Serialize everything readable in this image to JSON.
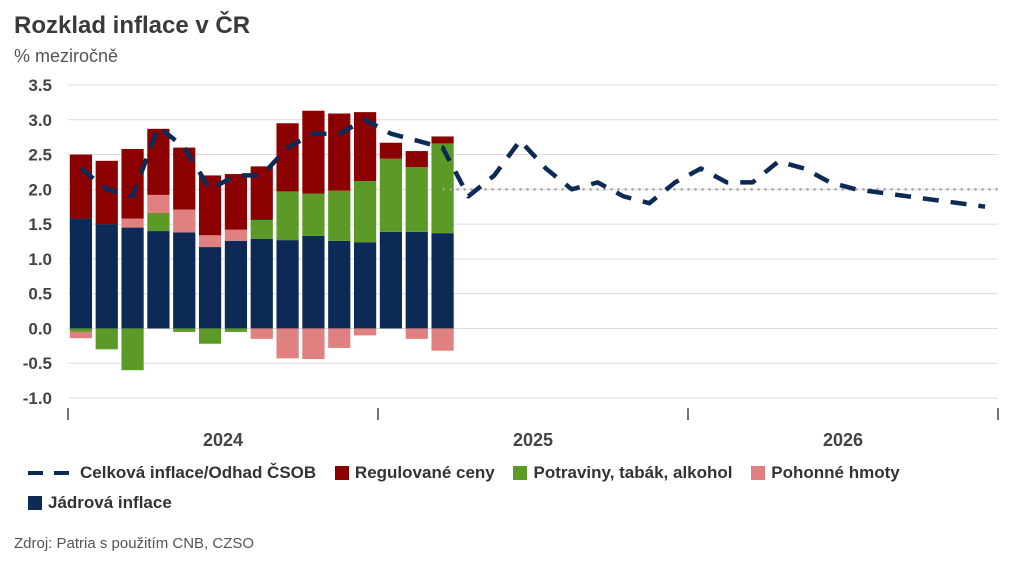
{
  "chart_data": {
    "type": "bar",
    "title": "Rozklad inflace v ČR",
    "subtitle": "% meziročně",
    "source": "Zdroj: Patria s použitím CNB, CZSO",
    "ylim": [
      -1.0,
      3.5
    ],
    "yticks": [
      "3.5",
      "3.0",
      "2.5",
      "2.0",
      "1.5",
      "1.0",
      "0.5",
      "0.0",
      "-0.5",
      "-1.0"
    ],
    "ytick_values": [
      3.5,
      3.0,
      2.5,
      2.0,
      1.5,
      1.0,
      0.5,
      0.0,
      -0.5,
      -1.0
    ],
    "years": [
      "2024",
      "2025",
      "2026"
    ],
    "n_months": 36,
    "target": 2.0,
    "stack_series": [
      {
        "name": "Jádrová inflace",
        "color": "#0c2a55",
        "values": [
          1.58,
          1.5,
          1.45,
          1.4,
          1.38,
          1.17,
          1.26,
          1.29,
          1.27,
          1.33,
          1.26,
          1.24,
          1.39,
          1.39,
          1.37
        ]
      },
      {
        "name": "Potraviny, tabák, alkohol",
        "color": "#5b9a27",
        "values": [
          -0.05,
          -0.3,
          -0.6,
          0.26,
          -0.05,
          -0.22,
          -0.05,
          0.27,
          0.7,
          0.61,
          0.72,
          0.88,
          1.05,
          0.93,
          1.29
        ]
      },
      {
        "name": "Pohonné hmoty",
        "color": "#e08080",
        "values": [
          -0.09,
          0.0,
          0.13,
          0.26,
          0.33,
          0.17,
          0.16,
          -0.15,
          -0.43,
          -0.44,
          -0.28,
          -0.1,
          0.0,
          -0.15,
          -0.32
        ]
      },
      {
        "name": "Regulované ceny",
        "color": "#8b0000",
        "values": [
          0.92,
          0.91,
          1.0,
          0.95,
          0.89,
          0.86,
          0.8,
          0.77,
          0.98,
          1.19,
          1.11,
          0.99,
          0.23,
          0.23,
          0.1
        ]
      }
    ],
    "line": {
      "name": "Celková inflace/Odhad ČSOB",
      "color": "#0c2a55",
      "values": [
        2.3,
        2.0,
        1.9,
        2.9,
        2.6,
        2.0,
        2.2,
        2.2,
        2.6,
        2.8,
        2.8,
        3.0,
        2.8,
        2.7,
        2.6,
        1.9,
        2.2,
        2.7,
        2.3,
        2.0,
        2.1,
        1.9,
        1.8,
        2.1,
        2.3,
        2.1,
        2.1,
        2.4,
        2.3,
        2.1,
        2.0,
        1.95,
        1.9,
        1.85,
        1.8,
        1.75
      ]
    }
  },
  "legend": {
    "line_label": "Celková inflace/Odhad ČSOB",
    "regulated_label": "Regulované ceny",
    "food_label": "Potraviny, tabák, alkohol",
    "fuel_label": "Pohonné hmoty",
    "core_label": "Jádrová inflace",
    "colors": {
      "line": "#0c2a55",
      "regulated": "#8b0000",
      "food": "#5b9a27",
      "fuel": "#e08080",
      "core": "#0c2a55"
    }
  }
}
